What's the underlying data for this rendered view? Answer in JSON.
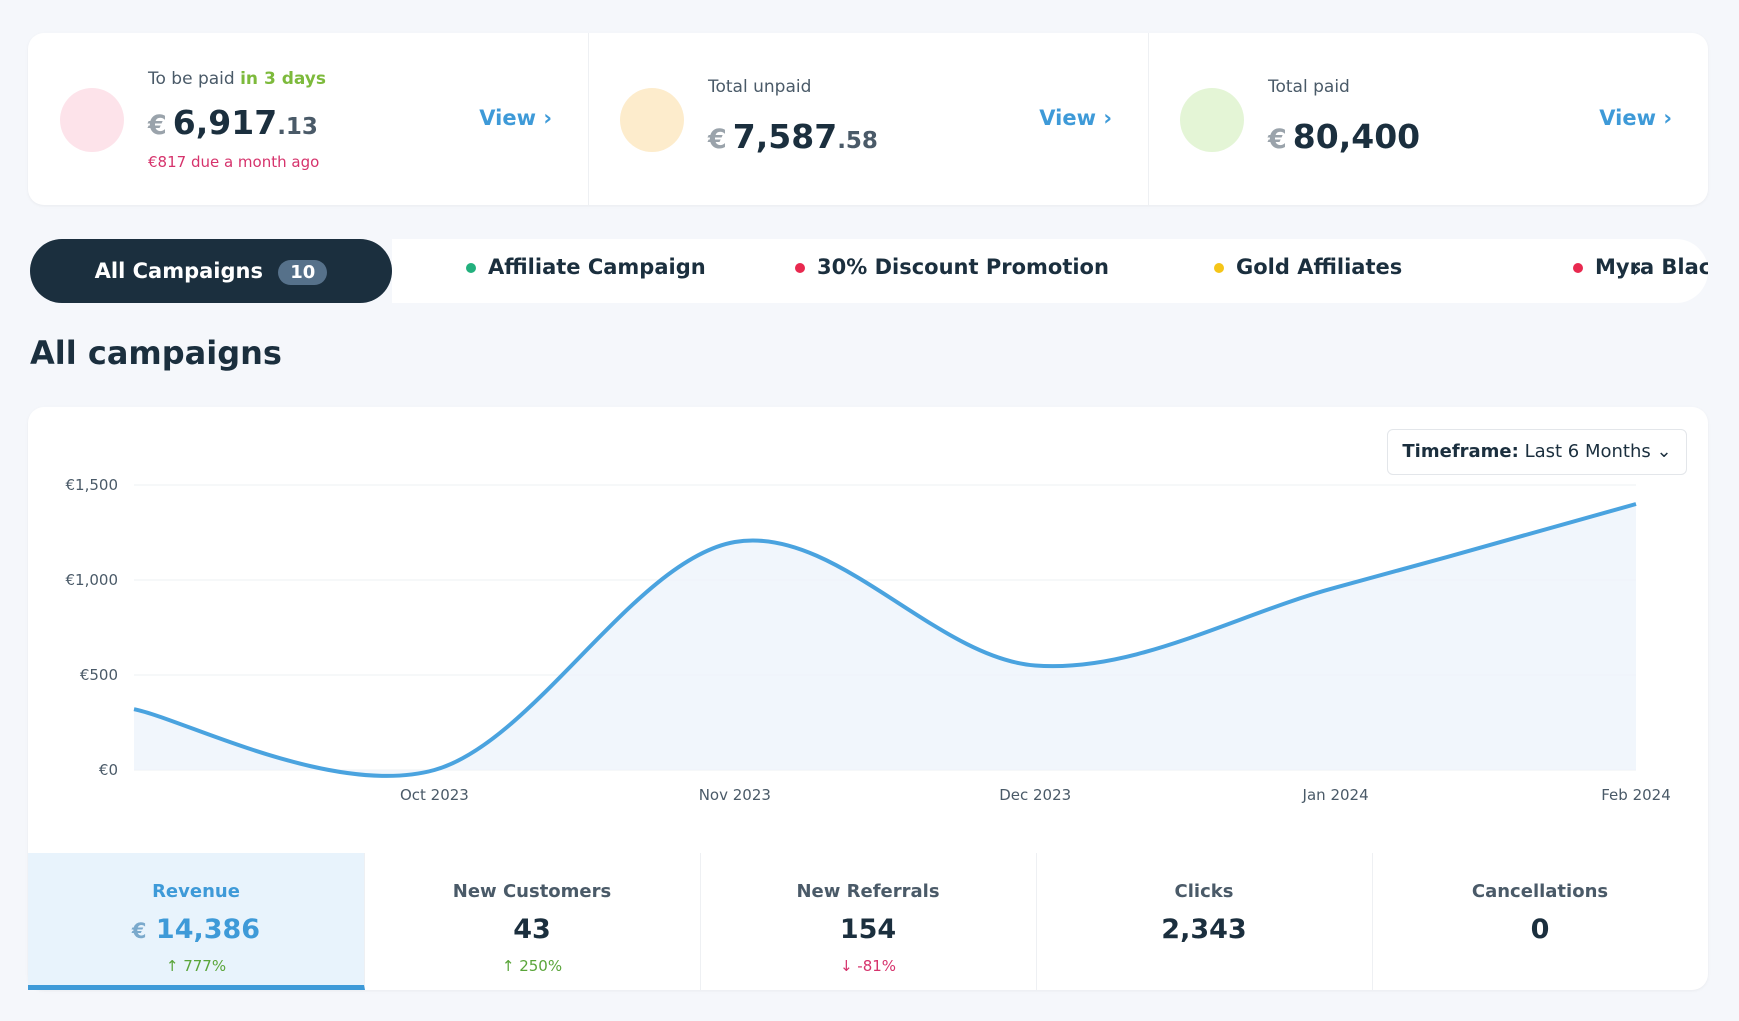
{
  "summary": [
    {
      "label": "To be paid",
      "label_highlight": "in 3 days",
      "currency": "€",
      "amount_main": "6,917",
      "amount_cents": ".13",
      "note": "€817 due a month ago",
      "action": "View"
    },
    {
      "label": "Total unpaid",
      "currency": "€",
      "amount_main": "7,587",
      "amount_cents": ".58",
      "action": "View"
    },
    {
      "label": "Total paid",
      "currency": "€",
      "amount_main": "80,400",
      "action": "View"
    }
  ],
  "tabs": {
    "active": {
      "label": "All Campaigns",
      "count": "10"
    },
    "items": [
      {
        "label": "Affiliate Campaign",
        "color": "#22b07d"
      },
      {
        "label": "30% Discount Promotion",
        "color": "#e8294f"
      },
      {
        "label": "Gold Affiliates",
        "color": "#f5c518"
      },
      {
        "label": "Myra Black",
        "color": "#e8294f"
      }
    ]
  },
  "section_title": "All campaigns",
  "timeframe": {
    "label": "Timeframe:",
    "value": "Last 6 Months"
  },
  "chart_data": {
    "type": "line",
    "categories": [
      null,
      "Oct 2023",
      "Nov 2023",
      "Dec 2023",
      "Jan 2024",
      "Feb 2024"
    ],
    "values": [
      320,
      0,
      1200,
      550,
      960,
      1400
    ],
    "color": "#4aa3df",
    "ylim": [
      0,
      1500
    ],
    "yticks": [
      {
        "value": 0,
        "label": "€0"
      },
      {
        "value": 500,
        "label": "€500"
      },
      {
        "value": 1000,
        "label": "€1,000"
      },
      {
        "value": 1500,
        "label": "€1,500"
      }
    ],
    "grid": true
  },
  "metrics": [
    {
      "label": "Revenue",
      "currency": "€",
      "value": "14,386",
      "change": "777%",
      "direction": "up"
    },
    {
      "label": "New Customers",
      "value": "43",
      "change": "250%",
      "direction": "up"
    },
    {
      "label": "New Referrals",
      "value": "154",
      "change": "-81%",
      "direction": "down"
    },
    {
      "label": "Clicks",
      "value": "2,343"
    },
    {
      "label": "Cancellations",
      "value": "0"
    }
  ]
}
